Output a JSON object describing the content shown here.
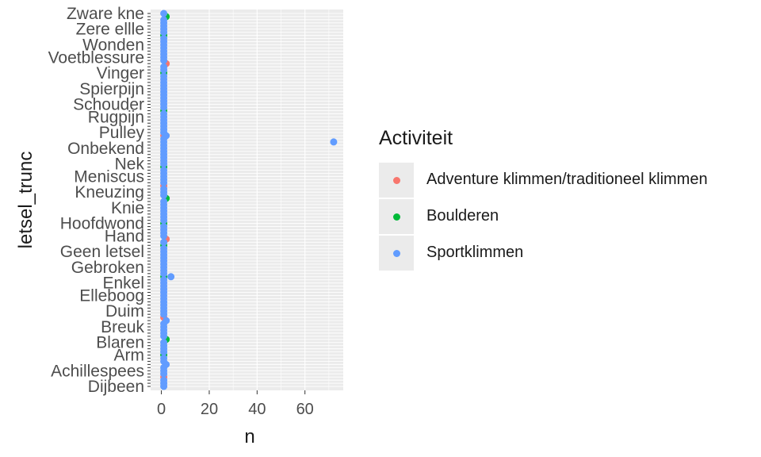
{
  "chart_data": {
    "type": "scatter",
    "xlabel": "n",
    "ylabel": "letsel_trunc",
    "xlim": [
      -4.5,
      76
    ],
    "x_ticks": [
      0,
      20,
      40,
      60
    ],
    "grid": "on",
    "legend_position": "right",
    "y_tick_labels_visible": [
      "Zware kne",
      "Zere ellle",
      "Wonden",
      "Voetblessure",
      "Vinger",
      "Spierpijn",
      "Schouder",
      "Rugpijn",
      "Pulley",
      "Onbekend",
      "Nek",
      "Meniscus",
      "Kneuzing",
      "Knie",
      "Hoofdwond",
      "Hand",
      "Geen letsel",
      "Gebroken",
      "Enkel",
      "Elleboog",
      "Duim",
      "Breuk",
      "Blaren",
      "Arm",
      "Achillespees",
      "Dijbeen"
    ],
    "categories_count": 120,
    "legend": {
      "title": "Activiteit",
      "entries": [
        {
          "name": "Adventure klimmen/traditioneel klimmen",
          "color": "#F8766D"
        },
        {
          "name": "Boulderen",
          "color": "#00BA38"
        },
        {
          "name": "Sportklimmen",
          "color": "#619CFF"
        }
      ]
    },
    "series": [
      {
        "name": "Adventure klimmen/traditioneel klimmen",
        "color": "#F8766D",
        "points": [
          {
            "y": 3,
            "x": 1
          },
          {
            "y": 22,
            "x": 1
          },
          {
            "y": 47,
            "x": 2
          },
          {
            "y": 64,
            "x": 1
          },
          {
            "y": 80,
            "x": 1
          },
          {
            "y": 103,
            "x": 2
          }
        ]
      },
      {
        "name": "Boulderen",
        "color": "#00BA38",
        "points": [
          {
            "y": 10,
            "x": 1
          },
          {
            "y": 15,
            "x": 2
          },
          {
            "y": 35,
            "x": 1
          },
          {
            "y": 45,
            "x": 1
          },
          {
            "y": 52,
            "x": 1
          },
          {
            "y": 60,
            "x": 2
          },
          {
            "y": 70,
            "x": 1
          },
          {
            "y": 88,
            "x": 1
          },
          {
            "y": 100,
            "x": 1
          },
          {
            "y": 112,
            "x": 1
          },
          {
            "y": 118,
            "x": 2
          }
        ]
      },
      {
        "name": "Sportklimmen",
        "color": "#619CFF",
        "points": [
          {
            "y": 0,
            "x": 1
          },
          {
            "y": 1,
            "x": 1
          },
          {
            "y": 2,
            "x": 1
          },
          {
            "y": 4,
            "x": 1
          },
          {
            "y": 5,
            "x": 1
          },
          {
            "y": 6,
            "x": 1
          },
          {
            "y": 7,
            "x": 2
          },
          {
            "y": 8,
            "x": 1
          },
          {
            "y": 9,
            "x": 1
          },
          {
            "y": 11,
            "x": 1
          },
          {
            "y": 12,
            "x": 1
          },
          {
            "y": 13,
            "x": 1
          },
          {
            "y": 14,
            "x": 1
          },
          {
            "y": 16,
            "x": 1
          },
          {
            "y": 17,
            "x": 1
          },
          {
            "y": 18,
            "x": 1
          },
          {
            "y": 19,
            "x": 1
          },
          {
            "y": 20,
            "x": 1
          },
          {
            "y": 21,
            "x": 2
          },
          {
            "y": 23,
            "x": 1
          },
          {
            "y": 24,
            "x": 1
          },
          {
            "y": 25,
            "x": 1
          },
          {
            "y": 26,
            "x": 1
          },
          {
            "y": 27,
            "x": 1
          },
          {
            "y": 28,
            "x": 1
          },
          {
            "y": 29,
            "x": 1
          },
          {
            "y": 30,
            "x": 1
          },
          {
            "y": 31,
            "x": 1
          },
          {
            "y": 32,
            "x": 1
          },
          {
            "y": 33,
            "x": 1
          },
          {
            "y": 34,
            "x": 1
          },
          {
            "y": 36,
            "x": 1
          },
          {
            "y": 37,
            "x": 1
          },
          {
            "y": 38,
            "x": 1
          },
          {
            "y": 39,
            "x": 1
          },
          {
            "y": 40,
            "x": 1
          },
          {
            "y": 41,
            "x": 1
          },
          {
            "y": 42,
            "x": 1
          },
          {
            "y": 43,
            "x": 1
          },
          {
            "y": 44,
            "x": 1
          },
          {
            "y": 46,
            "x": 1
          },
          {
            "y": 48,
            "x": 1
          },
          {
            "y": 49,
            "x": 1
          },
          {
            "y": 50,
            "x": 1
          },
          {
            "y": 51,
            "x": 1
          },
          {
            "y": 53,
            "x": 1
          },
          {
            "y": 54,
            "x": 1
          },
          {
            "y": 55,
            "x": 1
          },
          {
            "y": 56,
            "x": 1
          },
          {
            "y": 57,
            "x": 1
          },
          {
            "y": 58,
            "x": 1
          },
          {
            "y": 59,
            "x": 1
          },
          {
            "y": 61,
            "x": 1
          },
          {
            "y": 62,
            "x": 1
          },
          {
            "y": 63,
            "x": 1
          },
          {
            "y": 65,
            "x": 1
          },
          {
            "y": 66,
            "x": 1
          },
          {
            "y": 67,
            "x": 1
          },
          {
            "y": 68,
            "x": 1
          },
          {
            "y": 69,
            "x": 1
          },
          {
            "y": 71,
            "x": 1
          },
          {
            "y": 72,
            "x": 1
          },
          {
            "y": 73,
            "x": 1
          },
          {
            "y": 74,
            "x": 1
          },
          {
            "y": 75,
            "x": 1
          },
          {
            "y": 76,
            "x": 1
          },
          {
            "y": 77,
            "x": 1
          },
          {
            "y": 78,
            "x": 1
          },
          {
            "y": 79,
            "x": 1
          },
          {
            "y": 81,
            "x": 1
          },
          {
            "y": 82,
            "x": 1
          },
          {
            "y": 83,
            "x": 1
          },
          {
            "y": 84,
            "x": 1
          },
          {
            "y": 85,
            "x": 1
          },
          {
            "y": 86,
            "x": 1
          },
          {
            "y": 87,
            "x": 1
          },
          {
            "y": 89,
            "x": 1
          },
          {
            "y": 90,
            "x": 1
          },
          {
            "y": 91,
            "x": 1
          },
          {
            "y": 92,
            "x": 1
          },
          {
            "y": 93,
            "x": 1
          },
          {
            "y": 94,
            "x": 1
          },
          {
            "y": 95,
            "x": 1
          },
          {
            "y": 96,
            "x": 1
          },
          {
            "y": 97,
            "x": 1
          },
          {
            "y": 98,
            "x": 1
          },
          {
            "y": 99,
            "x": 1
          },
          {
            "y": 101,
            "x": 1
          },
          {
            "y": 102,
            "x": 1
          },
          {
            "y": 104,
            "x": 1
          },
          {
            "y": 105,
            "x": 1
          },
          {
            "y": 106,
            "x": 1
          },
          {
            "y": 107,
            "x": 1
          },
          {
            "y": 108,
            "x": 1
          },
          {
            "y": 109,
            "x": 1
          },
          {
            "y": 110,
            "x": 1
          },
          {
            "y": 111,
            "x": 1
          },
          {
            "y": 113,
            "x": 1
          },
          {
            "y": 114,
            "x": 1
          },
          {
            "y": 115,
            "x": 1
          },
          {
            "y": 116,
            "x": 1
          },
          {
            "y": 117,
            "x": 1
          },
          {
            "y": 119,
            "x": 1
          },
          {
            "y": 35,
            "x": 4
          },
          {
            "y": 78,
            "x": 72
          },
          {
            "y": 80,
            "x": 2
          }
        ]
      }
    ]
  }
}
